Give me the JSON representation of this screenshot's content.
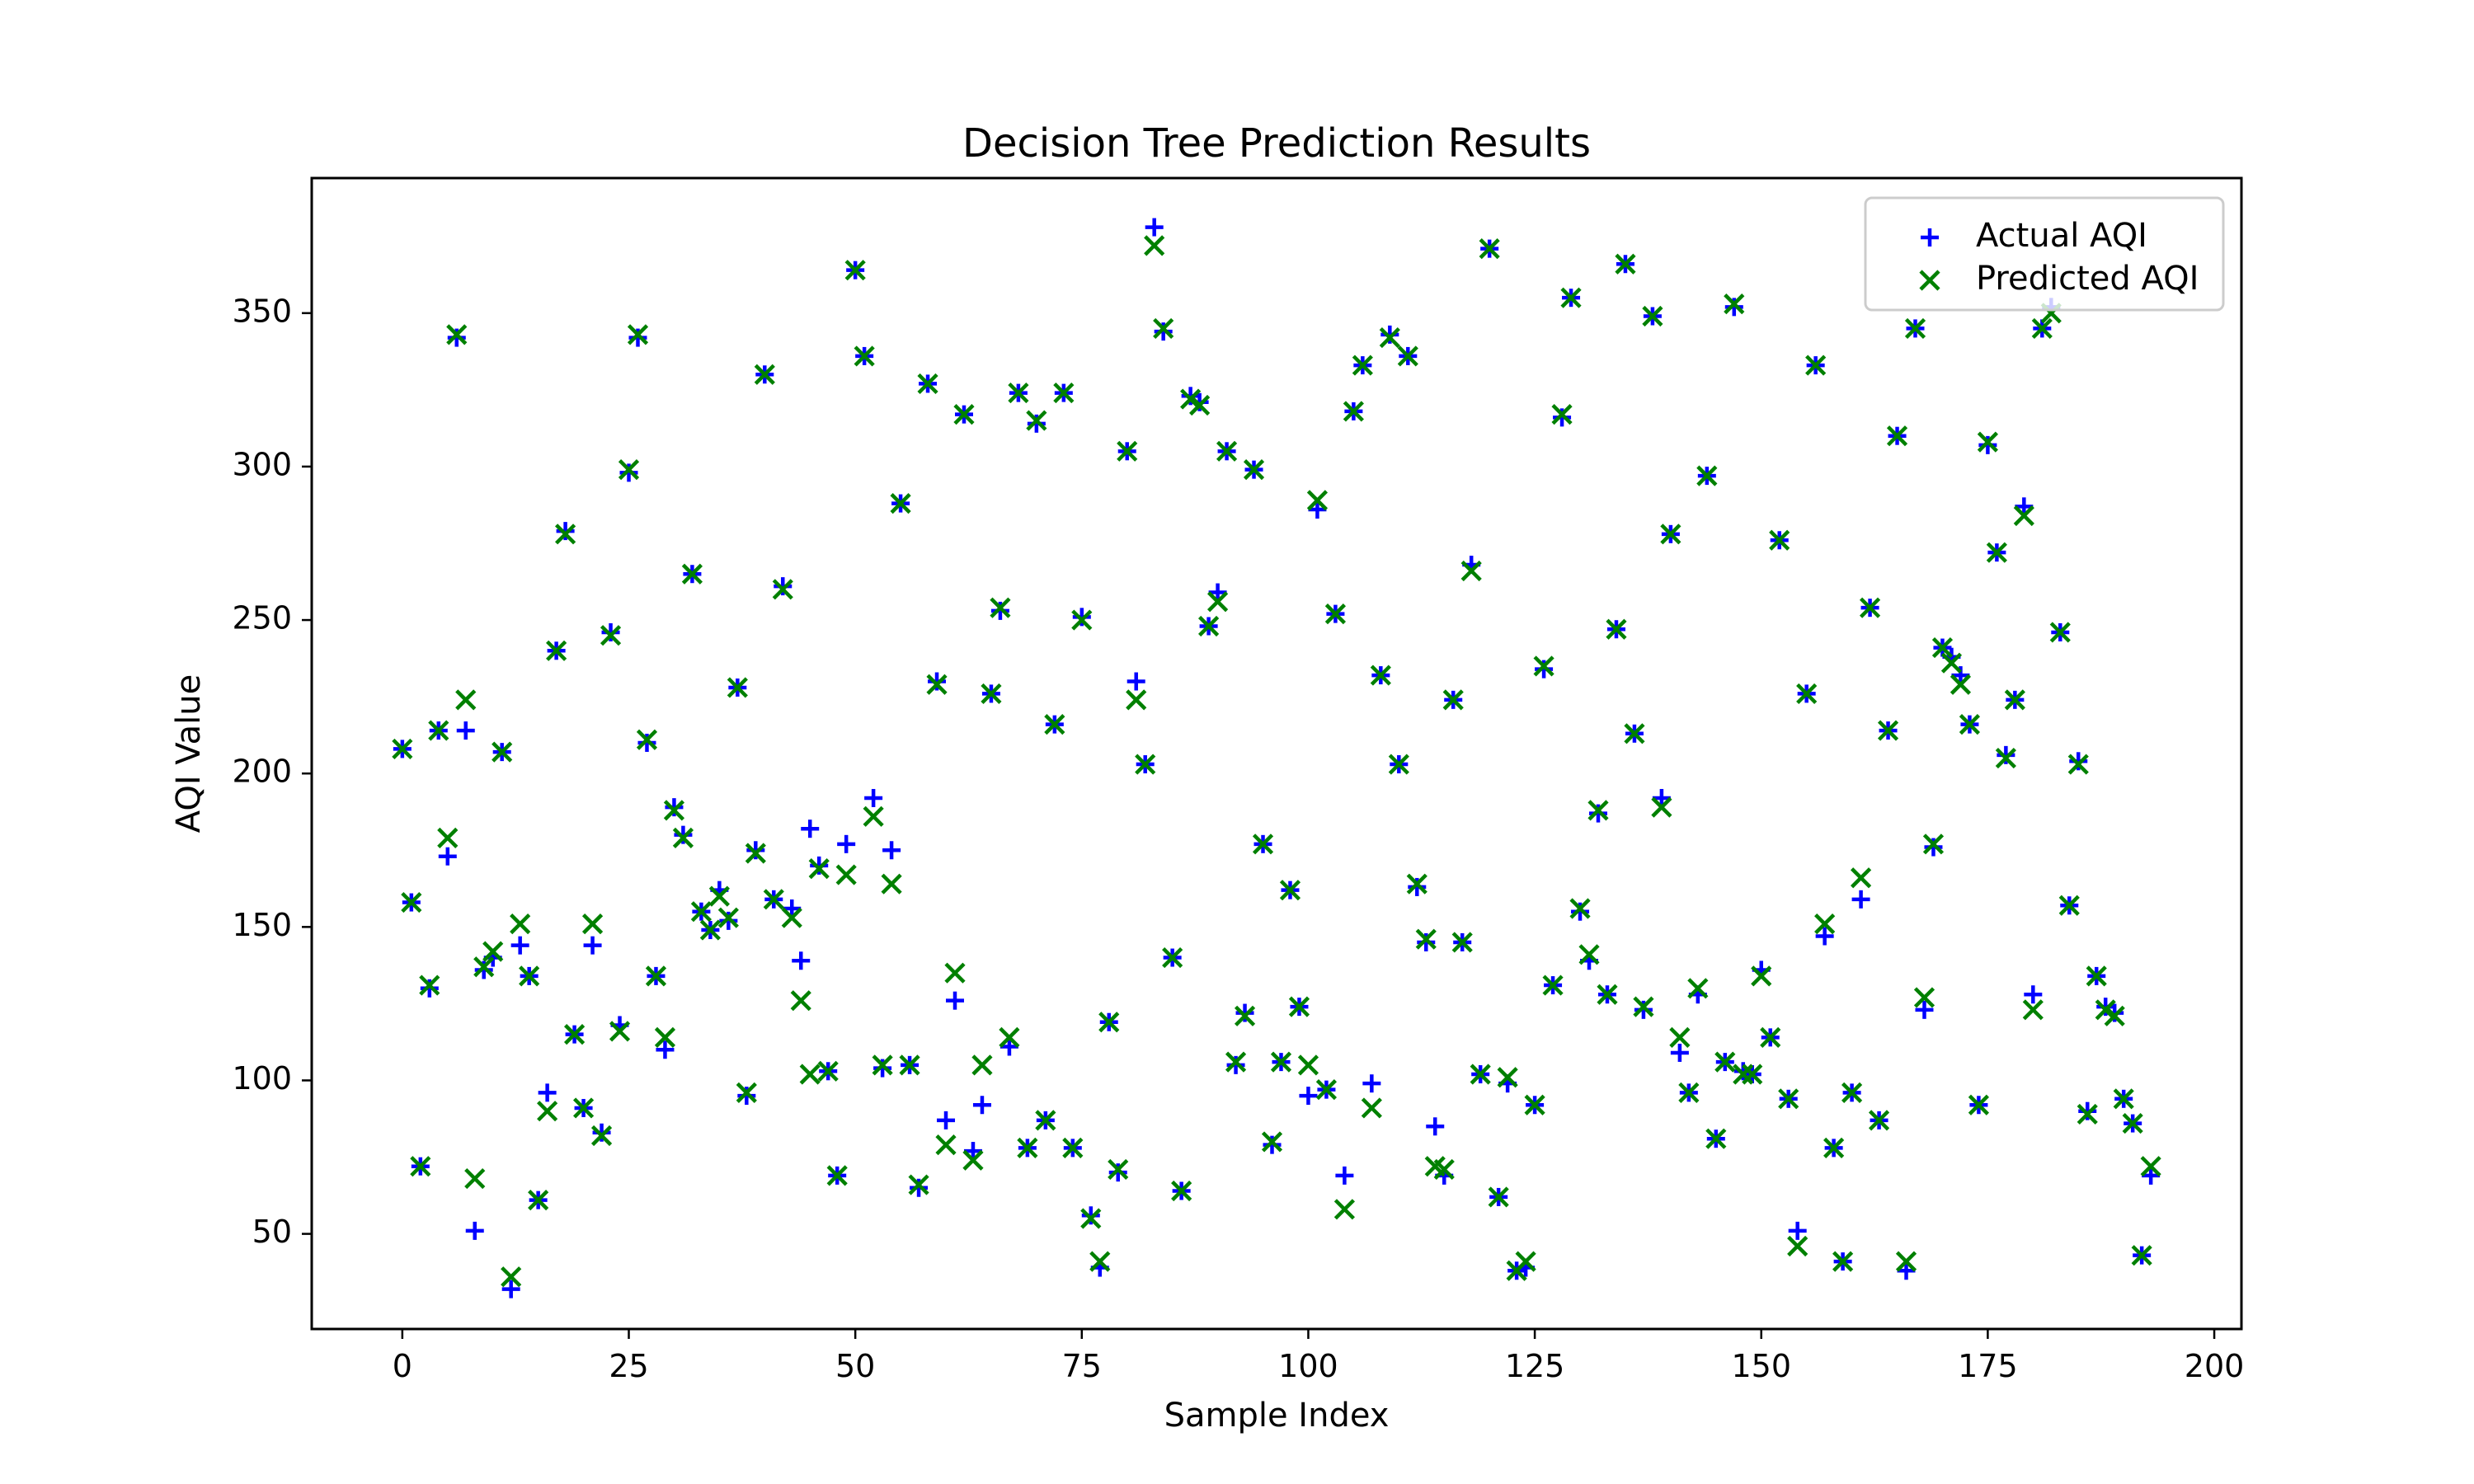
{
  "chart_data": {
    "type": "scatter",
    "title": "Decision Tree Prediction Results",
    "xlabel": "Sample Index",
    "ylabel": "AQI Value",
    "xlim": [
      -10,
      203
    ],
    "ylim": [
      19,
      394
    ],
    "xticks": [
      0,
      25,
      50,
      75,
      100,
      125,
      150,
      175,
      200
    ],
    "yticks": [
      50,
      100,
      150,
      200,
      250,
      300,
      350
    ],
    "grid": false,
    "legend": "top-right",
    "series": [
      {
        "name": "Actual AQI",
        "marker": "plus",
        "color": "#0000ff",
        "x": [
          0,
          1,
          2,
          3,
          4,
          5,
          6,
          7,
          8,
          9,
          10,
          11,
          12,
          13,
          14,
          15,
          16,
          17,
          18,
          19,
          20,
          21,
          22,
          23,
          24,
          25,
          26,
          27,
          28,
          29,
          30,
          31,
          32,
          33,
          34,
          35,
          36,
          37,
          38,
          39,
          40,
          41,
          42,
          43,
          44,
          45,
          46,
          47,
          48,
          49,
          50,
          51,
          52,
          53,
          54,
          55,
          56,
          57,
          58,
          59,
          60,
          61,
          62,
          63,
          64,
          65,
          66,
          67,
          68,
          69,
          70,
          71,
          72,
          73,
          74,
          75,
          76,
          77,
          78,
          79,
          80,
          81,
          82,
          83,
          84,
          85,
          86,
          87,
          88,
          89,
          90,
          91,
          92,
          93,
          94,
          95,
          96,
          97,
          98,
          99,
          100,
          101,
          102,
          103,
          104,
          105,
          106,
          107,
          108,
          109,
          110,
          111,
          112,
          113,
          114,
          115,
          116,
          117,
          118,
          119,
          120,
          121,
          122,
          123,
          124,
          125,
          126,
          127,
          128,
          129,
          130,
          131,
          132,
          133,
          134,
          135,
          136,
          137,
          138,
          139,
          140,
          141,
          142,
          143,
          144,
          145,
          146,
          147,
          148,
          149,
          150,
          151,
          152,
          153,
          154,
          155,
          156,
          157,
          158,
          159,
          160,
          161,
          162,
          163,
          164,
          165,
          166,
          167,
          168,
          169,
          170,
          171,
          172,
          173,
          174,
          175,
          176,
          177,
          178,
          179,
          180,
          181,
          182,
          183,
          184,
          185,
          186,
          187,
          188,
          189,
          190,
          191,
          192,
          193
        ],
        "y": [
          208,
          158,
          72,
          130,
          214,
          173,
          342,
          214,
          51,
          136,
          140,
          207,
          32,
          144,
          134,
          61,
          96,
          240,
          279,
          115,
          91,
          144,
          83,
          246,
          118,
          298,
          342,
          210,
          134,
          110,
          189,
          180,
          265,
          155,
          149,
          162,
          152,
          228,
          95,
          175,
          330,
          159,
          261,
          156,
          139,
          182,
          170,
          103,
          69,
          177,
          364,
          336,
          192,
          104,
          175,
          288,
          105,
          65,
          327,
          230,
          87,
          126,
          317,
          77,
          92,
          226,
          253,
          111,
          324,
          78,
          314,
          87,
          216,
          324,
          78,
          251,
          56,
          39,
          119,
          70,
          305,
          230,
          203,
          378,
          344,
          140,
          64,
          323,
          321,
          248,
          259,
          305,
          105,
          122,
          299,
          177,
          79,
          106,
          162,
          124,
          95,
          286,
          97,
          252,
          69,
          318,
          333,
          99,
          232,
          343,
          203,
          336,
          163,
          145,
          85,
          69,
          224,
          145,
          268,
          102,
          371,
          62,
          99,
          38,
          39,
          92,
          234,
          131,
          316,
          355,
          155,
          139,
          187,
          128,
          247,
          366,
          213,
          123,
          349,
          192,
          278,
          109,
          96,
          128,
          297,
          81,
          106,
          352,
          103,
          102,
          136,
          114,
          276,
          94,
          51,
          226,
          333,
          147,
          78,
          41,
          96,
          159,
          254,
          87,
          214,
          310,
          38,
          345,
          123,
          176,
          241,
          238,
          232,
          216,
          92,
          307,
          272,
          206,
          224,
          287,
          128,
          345,
          352,
          246,
          157,
          204,
          90,
          134,
          124,
          122,
          94,
          86,
          43,
          69
        ]
      },
      {
        "name": "Predicted AQI",
        "marker": "x",
        "color": "#008000",
        "x": [
          0,
          1,
          2,
          3,
          4,
          5,
          6,
          7,
          8,
          9,
          10,
          11,
          12,
          13,
          14,
          15,
          16,
          17,
          18,
          19,
          20,
          21,
          22,
          23,
          24,
          25,
          26,
          27,
          28,
          29,
          30,
          31,
          32,
          33,
          34,
          35,
          36,
          37,
          38,
          39,
          40,
          41,
          42,
          43,
          44,
          45,
          46,
          47,
          48,
          49,
          50,
          51,
          52,
          53,
          54,
          55,
          56,
          57,
          58,
          59,
          60,
          61,
          62,
          63,
          64,
          65,
          66,
          67,
          68,
          69,
          70,
          71,
          72,
          73,
          74,
          75,
          76,
          77,
          78,
          79,
          80,
          81,
          82,
          83,
          84,
          85,
          86,
          87,
          88,
          89,
          90,
          91,
          92,
          93,
          94,
          95,
          96,
          97,
          98,
          99,
          100,
          101,
          102,
          103,
          104,
          105,
          106,
          107,
          108,
          109,
          110,
          111,
          112,
          113,
          114,
          115,
          116,
          117,
          118,
          119,
          120,
          121,
          122,
          123,
          124,
          125,
          126,
          127,
          128,
          129,
          130,
          131,
          132,
          133,
          134,
          135,
          136,
          137,
          138,
          139,
          140,
          141,
          142,
          143,
          144,
          145,
          146,
          147,
          148,
          149,
          150,
          151,
          152,
          153,
          154,
          155,
          156,
          157,
          158,
          159,
          160,
          161,
          162,
          163,
          164,
          165,
          166,
          167,
          168,
          169,
          170,
          171,
          172,
          173,
          174,
          175,
          176,
          177,
          178,
          179,
          180,
          181,
          182,
          183,
          184,
          185,
          186,
          187,
          188,
          189,
          190,
          191,
          192,
          193
        ],
        "y": [
          208,
          158,
          72,
          131,
          214,
          179,
          343,
          224,
          68,
          137,
          142,
          207,
          36,
          151,
          134,
          61,
          90,
          240,
          278,
          115,
          91,
          151,
          82,
          245,
          116,
          299,
          343,
          211,
          134,
          114,
          188,
          179,
          265,
          155,
          149,
          160,
          153,
          228,
          96,
          174,
          330,
          159,
          260,
          153,
          126,
          102,
          169,
          103,
          69,
          167,
          364,
          336,
          186,
          105,
          164,
          288,
          105,
          66,
          327,
          229,
          79,
          135,
          317,
          74,
          105,
          226,
          254,
          114,
          324,
          78,
          315,
          87,
          216,
          324,
          78,
          250,
          55,
          41,
          119,
          71,
          305,
          224,
          203,
          372,
          345,
          140,
          64,
          322,
          320,
          248,
          256,
          305,
          106,
          121,
          299,
          177,
          80,
          106,
          162,
          124,
          105,
          289,
          97,
          252,
          58,
          318,
          333,
          91,
          232,
          342,
          203,
          336,
          164,
          146,
          72,
          71,
          224,
          145,
          266,
          102,
          371,
          62,
          101,
          38,
          41,
          92,
          235,
          131,
          317,
          355,
          156,
          141,
          188,
          128,
          247,
          366,
          213,
          124,
          349,
          189,
          278,
          114,
          96,
          130,
          297,
          81,
          106,
          353,
          102,
          102,
          134,
          114,
          276,
          94,
          46,
          226,
          333,
          151,
          78,
          41,
          96,
          166,
          254,
          87,
          214,
          310,
          41,
          345,
          127,
          177,
          241,
          236,
          229,
          216,
          92,
          308,
          272,
          205,
          224,
          284,
          123,
          345,
          350,
          246,
          157,
          203,
          89,
          134,
          123,
          121,
          94,
          86,
          43,
          72
        ]
      }
    ]
  }
}
